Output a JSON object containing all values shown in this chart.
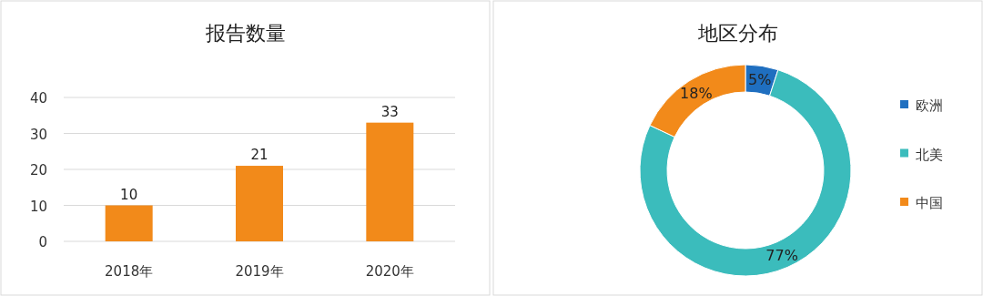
{
  "chart_data": [
    {
      "type": "bar",
      "title": "报告数量",
      "categories": [
        "2018年",
        "2019年",
        "2020年"
      ],
      "values": [
        10,
        21,
        33
      ],
      "color": "#f28a1a",
      "ylim": [
        0,
        40
      ],
      "yticks": [
        0,
        10,
        20,
        30,
        40
      ],
      "grid": "y",
      "data_labels": true
    },
    {
      "type": "donut",
      "title": "地区分布",
      "categories": [
        "欧洲",
        "北美",
        "中国"
      ],
      "values": [
        5,
        77,
        18
      ],
      "colors": [
        "#1f6fc0",
        "#3bbcbc",
        "#f28a1a"
      ],
      "value_labels": [
        "5%",
        "77%",
        "18%"
      ],
      "legend": "right"
    }
  ]
}
